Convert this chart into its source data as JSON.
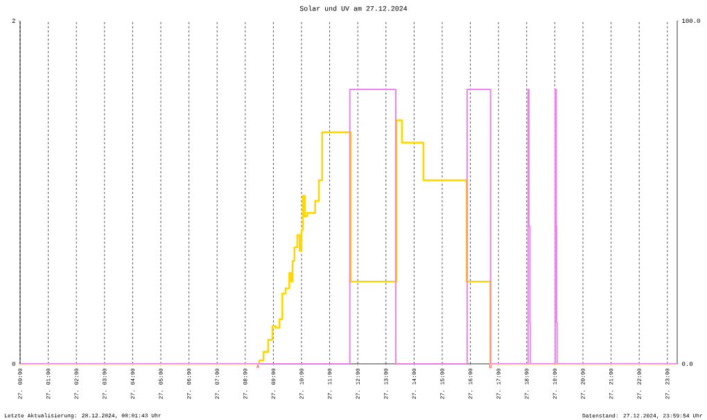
{
  "chart_data": {
    "type": "step",
    "title": "Solar und UV am 27.12.2024",
    "xlim": [
      "2024-12-27T00:00",
      "2024-12-27T23:21"
    ],
    "xticks": [
      {
        "value": "2024-12-27T00:00",
        "label": "27. 00:00"
      },
      {
        "value": "2024-12-27T01:00",
        "label": "27. 01:00"
      },
      {
        "value": "2024-12-27T02:00",
        "label": "27. 02:00"
      },
      {
        "value": "2024-12-27T03:00",
        "label": "27. 03:00"
      },
      {
        "value": "2024-12-27T04:00",
        "label": "27. 04:00"
      },
      {
        "value": "2024-12-27T05:00",
        "label": "27. 05:00"
      },
      {
        "value": "2024-12-27T06:00",
        "label": "27. 06:00"
      },
      {
        "value": "2024-12-27T07:00",
        "label": "27. 07:00"
      },
      {
        "value": "2024-12-27T08:00",
        "label": "27. 08:00"
      },
      {
        "value": "2024-12-27T09:00",
        "label": "27. 09:00"
      },
      {
        "value": "2024-12-27T10:00",
        "label": "27. 10:00"
      },
      {
        "value": "2024-12-27T11:00",
        "label": "27. 11:00"
      },
      {
        "value": "2024-12-27T12:00",
        "label": "27. 12:00"
      },
      {
        "value": "2024-12-27T13:00",
        "label": "27. 13:00"
      },
      {
        "value": "2024-12-27T14:00",
        "label": "27. 14:00"
      },
      {
        "value": "2024-12-27T15:00",
        "label": "27. 15:00"
      },
      {
        "value": "2024-12-27T16:00",
        "label": "27. 16:00"
      },
      {
        "value": "2024-12-27T17:00",
        "label": "27. 17:00"
      },
      {
        "value": "2024-12-27T18:00",
        "label": "27. 18:00"
      },
      {
        "value": "2024-12-27T19:00",
        "label": "27. 19:00"
      },
      {
        "value": "2024-12-27T20:00",
        "label": "27. 20:00"
      },
      {
        "value": "2024-12-27T21:00",
        "label": "27. 21:00"
      },
      {
        "value": "2024-12-27T22:00",
        "label": "27. 22:00"
      },
      {
        "value": "2024-12-27T23:00",
        "label": "27. 23:00"
      }
    ],
    "ylim": [
      0,
      2
    ],
    "yticks": [
      0,
      2
    ],
    "y2lim": [
      0,
      100
    ],
    "y2ticks": [
      {
        "value": 0,
        "label": "0.0"
      },
      {
        "value": 100,
        "label": "100.0"
      }
    ],
    "grid": "x",
    "series": [
      {
        "color": "#ffd700",
        "x": [
          "2024-12-27T00:00",
          "2024-12-27T08:27",
          "2024-12-27T08:30",
          "2024-12-27T08:39",
          "2024-12-27T08:49",
          "2024-12-27T08:58",
          "2024-12-27T09:05",
          "2024-12-27T09:13",
          "2024-12-27T09:19",
          "2024-12-27T09:26",
          "2024-12-27T09:34",
          "2024-12-27T09:38",
          "2024-12-27T09:41",
          "2024-12-27T09:45",
          "2024-12-27T09:51",
          "2024-12-27T09:56",
          "2024-12-27T10:00",
          "2024-12-27T10:03",
          "2024-12-27T10:07",
          "2024-12-27T10:12",
          "2024-12-27T10:29",
          "2024-12-27T10:37",
          "2024-12-27T10:44",
          "2024-12-27T11:45",
          "2024-12-27T13:22",
          "2024-12-27T13:34",
          "2024-12-27T14:20",
          "2024-12-27T15:52",
          "2024-12-27T16:43",
          "2024-12-27T23:21"
        ],
        "values": [
          0,
          0,
          0.02,
          0.07,
          0.14,
          0.22,
          0.21,
          0.26,
          0.41,
          0.44,
          0.53,
          0.48,
          0.6,
          0.68,
          0.75,
          0.66,
          0.78,
          0.98,
          0.86,
          0.88,
          0.95,
          1.07,
          1.35,
          0.48,
          1.42,
          1.29,
          1.07,
          0.48,
          0,
          0
        ]
      },
      {
        "color": "#ee82ee",
        "axis": "y2",
        "x": [
          "2024-12-27T00:00",
          "2024-12-27T11:43",
          "2024-12-27T13:21",
          "2024-12-27T15:53",
          "2024-12-27T16:43",
          "2024-12-27T18:03",
          "2024-12-27T18:05",
          "2024-12-27T18:07",
          "2024-12-27T18:08",
          "2024-12-27T19:01",
          "2024-12-27T19:03",
          "2024-12-27T19:04",
          "2024-12-27T19:05",
          "2024-12-27T23:21"
        ],
        "values": [
          0,
          80,
          0,
          80,
          0,
          80,
          40,
          12,
          0,
          80,
          40,
          12,
          0,
          0
        ]
      }
    ],
    "annotations": [
      {
        "text": "A",
        "x": "2024-12-27T08:27",
        "y": 0
      },
      {
        "text": "U",
        "x": "2024-12-27T16:43",
        "y": 0
      },
      "Letzte Aktualisierung: 28.12.2024, 00:01:43 Uhr",
      "Datenstand: 27.12.2024, 23:59:54 Uhr"
    ]
  }
}
